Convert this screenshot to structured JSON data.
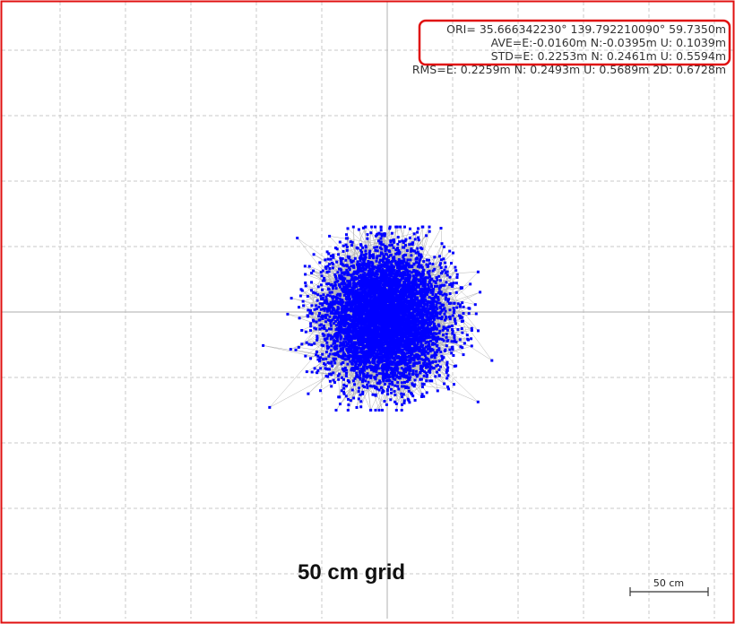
{
  "stats": {
    "ori": "ORI= 35.666342230°  139.792210090° 59.7350m",
    "ave": "AVE=E:-0.0160m N:-0.0395m U: 0.1039m",
    "std": "STD=E: 0.2253m N: 0.2461m U: 0.5594m",
    "rms": "RMS=E: 0.2259m N: 0.2493m U: 0.5689m 2D: 0.6728m"
  },
  "caption": "50 cm grid",
  "scale_bar_label": "50 cm",
  "colors": {
    "points": "#0000ff",
    "track": "#b4b4b4",
    "grid": "#c8c8c8",
    "axis": "#bdbdbd",
    "frame": "#e01010",
    "highlight_box": "#e01010"
  },
  "chart_data": {
    "type": "scatter",
    "title": "",
    "xlabel": "",
    "ylabel": "",
    "units": "m",
    "grid_spacing": 0.5,
    "grid": true,
    "center": {
      "E": -0.016,
      "N": -0.0395
    },
    "std": {
      "E": 0.2253,
      "N": 0.2461
    },
    "extent": {
      "E": [
        -0.95,
        0.8
      ],
      "N": [
        -0.75,
        0.65
      ]
    },
    "point_count": 6000
  }
}
